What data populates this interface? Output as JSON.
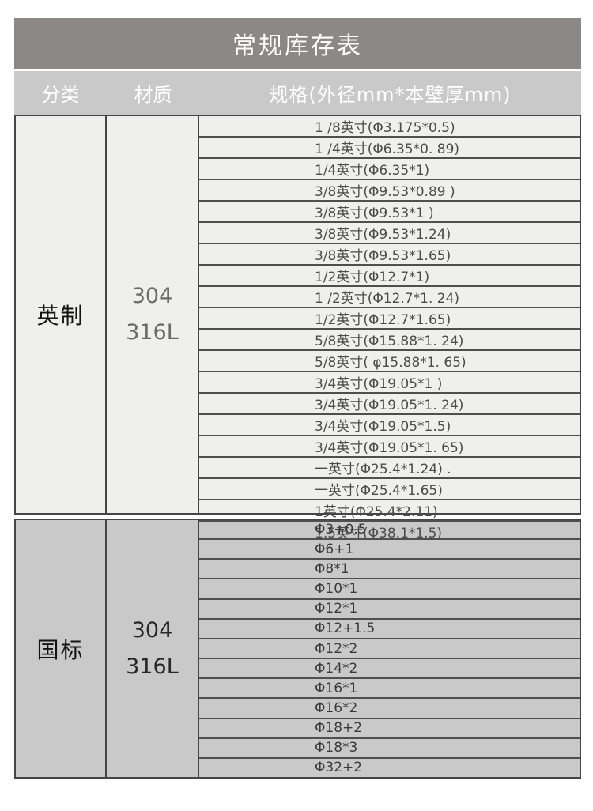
{
  "title": "常规库存表",
  "header": {
    "category": "分类",
    "material": "材质",
    "spec": "规格(外径mm*本壁厚mm)"
  },
  "sections": [
    {
      "category": "英制",
      "material": [
        "304",
        "316L"
      ],
      "specs": [
        "1 /8英寸(Φ3.175*0.5)",
        "1 /4英寸(Φ6.35*0. 89)",
        "1/4英寸(Φ6.35*1)",
        "3/8英寸(Φ9.53*0.89 )",
        "3/8英寸(Φ9.53*1 )",
        "3/8英寸(Φ9.53*1.24)",
        "3/8英寸(Φ9.53*1.65)",
        "1/2英寸(Φ12.7*1)",
        "1 /2英寸(Φ12.7*1. 24)",
        "1/2英寸(Φ12.7*1.65)",
        "5/8英寸(Φ15.88*1. 24)",
        "5/8英寸( φ15.88*1. 65)",
        "3/4英寸(Φ19.05*1 )",
        "3/4英寸(Φ19.05*1. 24)",
        "3/4英寸(Φ19.05*1.5)",
        "3/4英寸(Φ19.05*1. 65)",
        "一英寸(Φ25.4*1.24) .",
        "一英寸(Φ25.4*1.65)",
        "1英寸(Φ25.4*2.11)",
        "1.5英寸(Φ38.1*1.5)"
      ]
    },
    {
      "category": "国标",
      "material": [
        "304",
        "316L"
      ],
      "specs": [
        "Φ3+0.5",
        "Φ6+1",
        "Φ8*1",
        "Φ10*1",
        "Φ12*1",
        "Φ12+1.5",
        "Φ12*2",
        "Φ14*2",
        "Φ16*1",
        "Φ16*2",
        "Φ18+2",
        "Φ18*3",
        "Φ32+2"
      ]
    }
  ],
  "colors": {
    "title_bar_bg": "#8b8886",
    "title_text": "#ffffff",
    "header_row_bg": "#c9c9c9",
    "header_text": "#ffffff",
    "section1_bg": "#efefee",
    "section2_bg": "#c9c9c9",
    "border_dark": "#454545",
    "row_divider": "#4f4f4f",
    "spec_text_1": "#4b4b4b",
    "spec_text_2": "#3a3a3a",
    "category_text": "#141414",
    "material_text_1": "#6b6b6b",
    "material_text_2": "#282828",
    "page_bg": "#ffffff"
  }
}
